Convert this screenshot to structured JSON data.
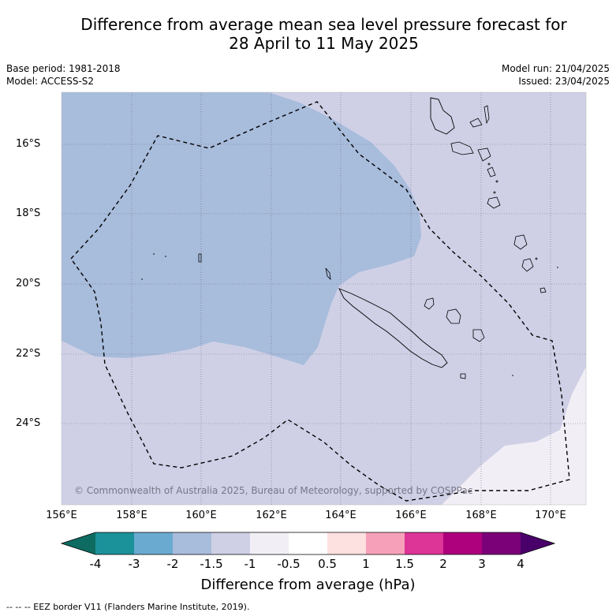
{
  "title_line1": "Difference from average mean sea level pressure forecast for",
  "title_line2": "28 April to 11 May 2025",
  "base_period": "Base period: 1981-2018",
  "model": "Model: ACCESS-S2",
  "model_run": "Model run: 21/04/2025",
  "issued": "Issued: 23/04/2025",
  "copyright": "© Commonwealth of Australia 2025, Bureau of Meteorology, supported by COSPPac",
  "lat_labels": [
    "16°S",
    "18°S",
    "20°S",
    "22°S",
    "24°S"
  ],
  "lon_labels": [
    "156°E",
    "158°E",
    "160°E",
    "162°E",
    "164°E",
    "166°E",
    "168°E",
    "170°E"
  ],
  "colorbar": {
    "title": "Difference from average (hPa)",
    "ticks": [
      "-4",
      "-3",
      "-2",
      "-1.5",
      "-1",
      "-0.5",
      "0.5",
      "1",
      "1.5",
      "2",
      "3",
      "4"
    ],
    "colors": [
      "#0e6b61",
      "#1b9199",
      "#6aaad1",
      "#a8bcdc",
      "#cfd0e6",
      "#f2eef5",
      "#ffffff",
      "#fde0e0",
      "#f7a0b9",
      "#dd3497",
      "#ae017e",
      "#7a0177",
      "#49006a"
    ]
  },
  "footer": "--  --  -- EEZ border V11 (Flanders Marine Institute, 2019)."
}
